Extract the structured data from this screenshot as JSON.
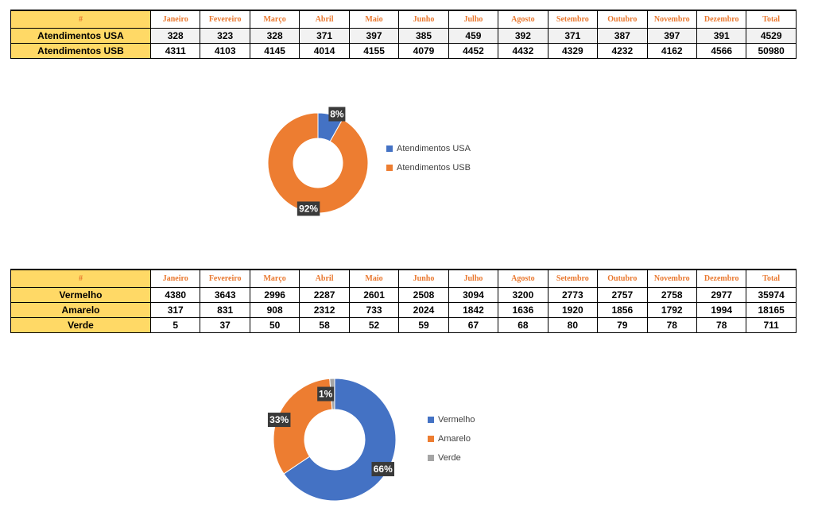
{
  "colors": {
    "usa": "#4472c4",
    "usb": "#ed7d31",
    "verde": "#a5a5a5",
    "label_bg": "#ffd966",
    "header_text": "#e9782f",
    "badge": "#3a3a3a"
  },
  "table1": {
    "corner": "#",
    "months": [
      "Janeiro",
      "Fevereiro",
      "Março",
      "Abril",
      "Maio",
      "Junho",
      "Julho",
      "Agosto",
      "Setembro",
      "Outubro",
      "Novembro",
      "Dezembro",
      "Total"
    ],
    "rows": [
      {
        "label": "Atendimentos USA",
        "values": [
          "328",
          "323",
          "328",
          "371",
          "397",
          "385",
          "459",
          "392",
          "371",
          "387",
          "397",
          "391",
          "4529"
        ]
      },
      {
        "label": "Atendimentos USB",
        "values": [
          "4311",
          "4103",
          "4145",
          "4014",
          "4155",
          "4079",
          "4452",
          "4432",
          "4329",
          "4232",
          "4162",
          "4566",
          "50980"
        ]
      }
    ]
  },
  "table2": {
    "corner": "#",
    "months": [
      "Janeiro",
      "Fevereiro",
      "Março",
      "Abril",
      "Maio",
      "Junho",
      "Julho",
      "Agosto",
      "Setembro",
      "Outubro",
      "Novembro",
      "Dezembro",
      "Total"
    ],
    "rows": [
      {
        "label": "Vermelho",
        "values": [
          "4380",
          "3643",
          "2996",
          "2287",
          "2601",
          "2508",
          "3094",
          "3200",
          "2773",
          "2757",
          "2758",
          "2977",
          "35974"
        ]
      },
      {
        "label": "Amarelo",
        "values": [
          "317",
          "831",
          "908",
          "2312",
          "733",
          "2024",
          "1842",
          "1636",
          "1920",
          "1856",
          "1792",
          "1994",
          "18165"
        ]
      },
      {
        "label": "Verde",
        "values": [
          "5",
          "37",
          "50",
          "58",
          "52",
          "59",
          "67",
          "68",
          "80",
          "79",
          "78",
          "78",
          "711"
        ]
      }
    ]
  },
  "chart_data": [
    {
      "type": "pie",
      "title": "",
      "categories": [
        "Atendimentos USA",
        "Atendimentos USB"
      ],
      "values": [
        4529,
        50980
      ],
      "data_labels": [
        "8%",
        "92%"
      ],
      "colors": [
        "#4472c4",
        "#ed7d31"
      ],
      "legend_position": "right"
    },
    {
      "type": "pie",
      "title": "",
      "categories": [
        "Vermelho",
        "Amarelo",
        "Verde"
      ],
      "values": [
        35974,
        18165,
        711
      ],
      "data_labels": [
        "66%",
        "33%",
        "1%"
      ],
      "colors": [
        "#4472c4",
        "#ed7d31",
        "#a5a5a5"
      ],
      "legend_position": "right"
    }
  ]
}
